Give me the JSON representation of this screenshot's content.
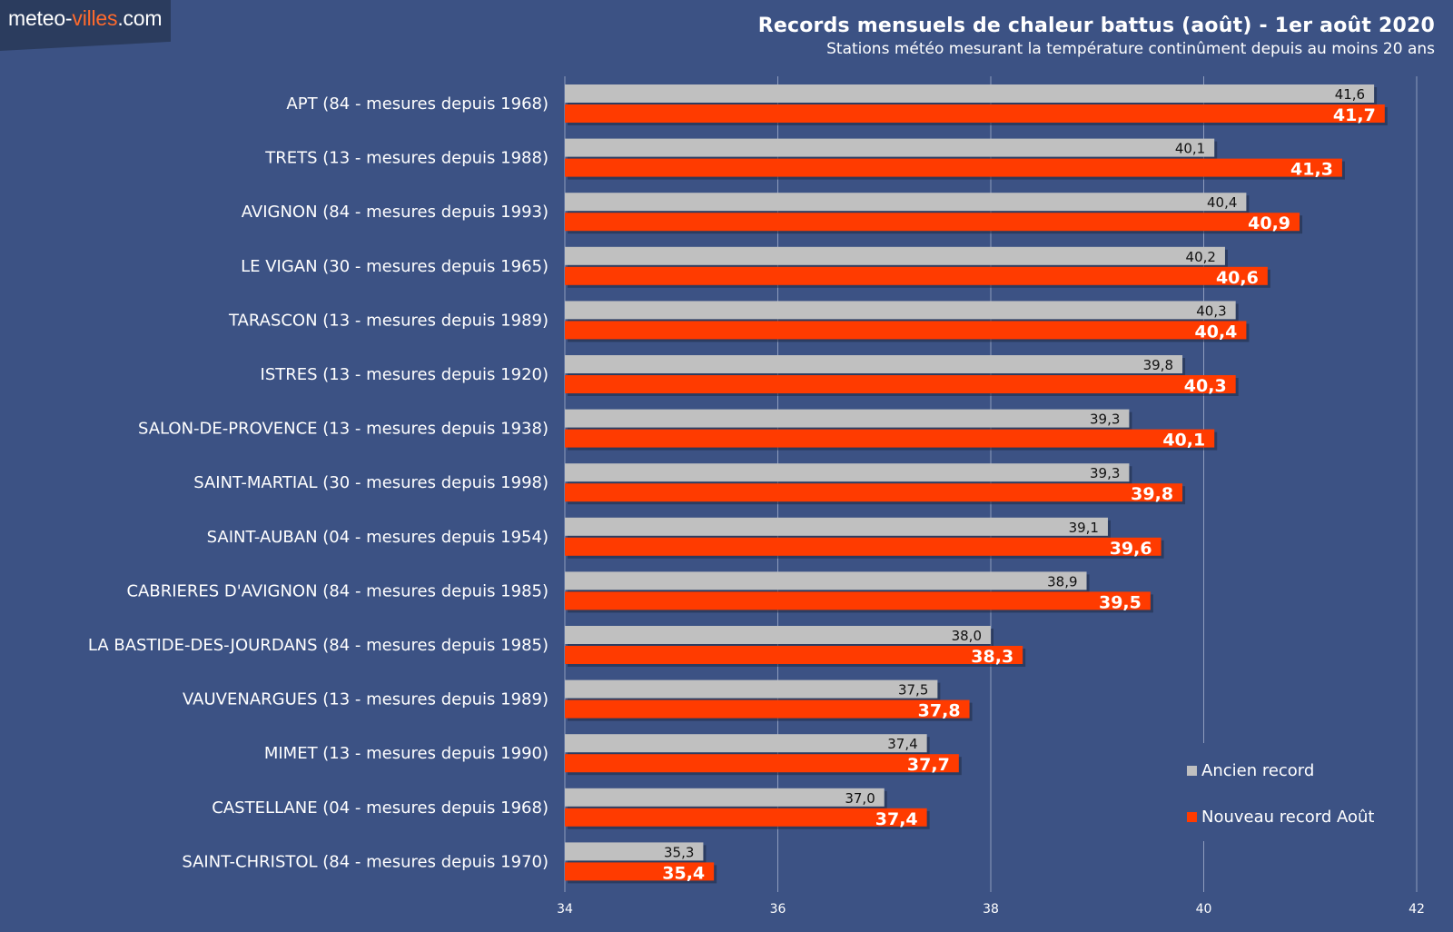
{
  "logo": {
    "prefix": "meteo-",
    "accent": "villes",
    "suffix": ".com"
  },
  "chart_data": {
    "type": "bar",
    "orientation": "horizontal",
    "title": "Records mensuels de chaleur battus (août) - 1er août 2020",
    "subtitle": "Stations météo mesurant la température continûment depuis au moins 20 ans",
    "categories": [
      "APT (84 - mesures depuis 1968)",
      "TRETS (13 - mesures depuis 1988)",
      "AVIGNON (84 - mesures depuis 1993)",
      "LE VIGAN (30 - mesures depuis 1965)",
      "TARASCON (13 - mesures depuis 1989)",
      "ISTRES (13 - mesures depuis 1920)",
      "SALON-DE-PROVENCE (13 - mesures depuis 1938)",
      "SAINT-MARTIAL (30 - mesures depuis 1998)",
      "SAINT-AUBAN (04 - mesures depuis 1954)",
      "CABRIERES D'AVIGNON (84 - mesures depuis 1985)",
      "LA BASTIDE-DES-JOURDANS (84 - mesures depuis 1985)",
      "VAUVENARGUES (13 - mesures depuis 1989)",
      "MIMET (13 - mesures depuis 1990)",
      "CASTELLANE (04 - mesures depuis 1968)",
      "SAINT-CHRISTOL (84 - mesures depuis 1970)"
    ],
    "series": [
      {
        "name": "Ancien record",
        "color": "#c0c0c0",
        "values": [
          41.6,
          40.1,
          40.4,
          40.2,
          40.3,
          39.8,
          39.3,
          39.3,
          39.1,
          38.9,
          38.0,
          37.5,
          37.4,
          37.0,
          35.3
        ],
        "labels": [
          "41,6",
          "40,1",
          "40,4",
          "40,2",
          "40,3",
          "39,8",
          "39,3",
          "39,3",
          "39,1",
          "38,9",
          "38,0",
          "37,5",
          "37,4",
          "37,0",
          "35,3"
        ]
      },
      {
        "name": "Nouveau record Août",
        "color": "#ff3b00",
        "values": [
          41.7,
          41.3,
          40.9,
          40.6,
          40.4,
          40.3,
          40.1,
          39.8,
          39.6,
          39.5,
          38.3,
          37.8,
          37.7,
          37.4,
          35.4
        ],
        "labels": [
          "41,7",
          "41,3",
          "40,9",
          "40,6",
          "40,4",
          "40,3",
          "40,1",
          "39,8",
          "39,6",
          "39,5",
          "38,3",
          "37,8",
          "37,7",
          "37,4",
          "35,4"
        ]
      }
    ],
    "xlim": [
      34,
      42
    ],
    "xticks": [
      "34",
      "36",
      "38",
      "40",
      "42"
    ],
    "xtick_values": [
      34,
      36,
      38,
      40,
      42
    ],
    "grid": true,
    "legend_position": "bottom-right"
  }
}
